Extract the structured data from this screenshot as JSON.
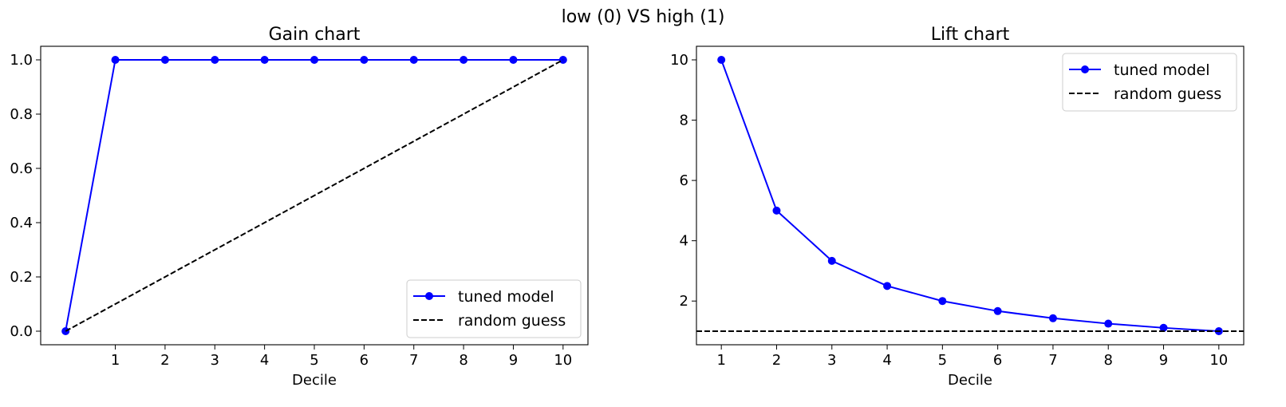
{
  "figure": {
    "suptitle": "low (0) VS high (1)"
  },
  "chart_data": [
    {
      "type": "line",
      "title": "Gain chart",
      "xlabel": "Decile",
      "ylabel": "",
      "xlim": [
        -0.5,
        10.5
      ],
      "ylim": [
        -0.05,
        1.05
      ],
      "xticks": [
        1,
        2,
        3,
        4,
        5,
        6,
        7,
        8,
        9,
        10
      ],
      "yticks": [
        0.0,
        0.2,
        0.4,
        0.6,
        0.8,
        1.0
      ],
      "ytick_labels": [
        "0.0",
        "0.2",
        "0.4",
        "0.6",
        "0.8",
        "1.0"
      ],
      "grid": false,
      "legend_position": "lower-right",
      "series": [
        {
          "name": "tuned model",
          "style": "solid",
          "marker": "circle",
          "color": "#0000ff",
          "x": [
            0,
            1,
            2,
            3,
            4,
            5,
            6,
            7,
            8,
            9,
            10
          ],
          "y": [
            0.0,
            1.0,
            1.0,
            1.0,
            1.0,
            1.0,
            1.0,
            1.0,
            1.0,
            1.0,
            1.0
          ]
        },
        {
          "name": "random guess",
          "style": "dashed",
          "marker": "none",
          "color": "#000000",
          "x": [
            0,
            10
          ],
          "y": [
            0.0,
            1.0
          ]
        }
      ]
    },
    {
      "type": "line",
      "title": "Lift chart",
      "xlabel": "Decile",
      "ylabel": "",
      "xlim": [
        0.55,
        10.45
      ],
      "ylim": [
        0.55,
        10.45
      ],
      "xticks": [
        1,
        2,
        3,
        4,
        5,
        6,
        7,
        8,
        9,
        10
      ],
      "yticks": [
        2,
        4,
        6,
        8,
        10
      ],
      "ytick_labels": [
        "2",
        "4",
        "6",
        "8",
        "10"
      ],
      "grid": false,
      "legend_position": "upper-right",
      "series": [
        {
          "name": "tuned model",
          "style": "solid",
          "marker": "circle",
          "color": "#0000ff",
          "x": [
            1,
            2,
            3,
            4,
            5,
            6,
            7,
            8,
            9,
            10
          ],
          "y": [
            10.0,
            5.0,
            3.333,
            2.5,
            2.0,
            1.667,
            1.429,
            1.25,
            1.111,
            1.0
          ]
        },
        {
          "name": "random guess",
          "style": "dashed",
          "marker": "none",
          "color": "#000000",
          "x": [
            0.55,
            10.45
          ],
          "y": [
            1.0,
            1.0
          ]
        }
      ]
    }
  ]
}
